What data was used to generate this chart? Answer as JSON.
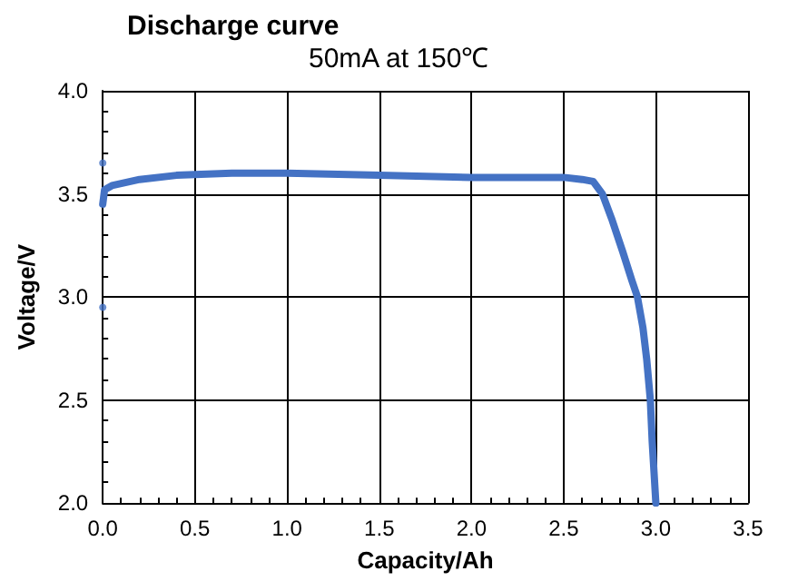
{
  "chart_data": {
    "type": "line",
    "title": "Discharge curve",
    "subtitle": "50mA at 150℃",
    "xlabel": "Capacity/Ah",
    "ylabel": "Voltage/V",
    "xlim": [
      0,
      3.5
    ],
    "ylim": [
      2,
      4
    ],
    "xticks": [
      {
        "value": 0,
        "label": "0.0"
      },
      {
        "value": 0.5,
        "label": "0.5"
      },
      {
        "value": 1,
        "label": "1.0"
      },
      {
        "value": 1.5,
        "label": "1.5"
      },
      {
        "value": 2,
        "label": "2.0"
      },
      {
        "value": 2.5,
        "label": "2.5"
      },
      {
        "value": 3,
        "label": "3.0"
      },
      {
        "value": 3.5,
        "label": "3.5"
      }
    ],
    "yticks": [
      {
        "value": 2,
        "label": "2.0"
      },
      {
        "value": 2.5,
        "label": "2.5"
      },
      {
        "value": 3,
        "label": "3.0"
      },
      {
        "value": 3.5,
        "label": "3.5"
      },
      {
        "value": 4,
        "label": "4.0"
      }
    ],
    "grid": true,
    "marker": "none",
    "line_style": "solid",
    "series": [
      {
        "color": "#4472c4",
        "x": [
          0,
          0.01,
          0.05,
          0.1,
          0.2,
          0.4,
          0.7,
          1.0,
          1.5,
          2.0,
          2.5,
          2.6,
          2.66,
          2.71,
          2.76,
          2.82,
          2.87,
          2.9,
          2.93,
          2.95,
          2.97,
          2.98,
          2.99,
          3.0
        ],
        "values": [
          3.45,
          3.52,
          3.54,
          3.55,
          3.57,
          3.59,
          3.6,
          3.6,
          3.59,
          3.58,
          3.58,
          3.57,
          3.56,
          3.5,
          3.38,
          3.22,
          3.08,
          3.0,
          2.85,
          2.7,
          2.5,
          2.3,
          2.15,
          2.0
        ]
      },
      {
        "type": "scatter",
        "color": "#4472c4",
        "marker": "circle",
        "x": [
          0,
          0
        ],
        "values": [
          3.65,
          2.95
        ]
      }
    ]
  }
}
